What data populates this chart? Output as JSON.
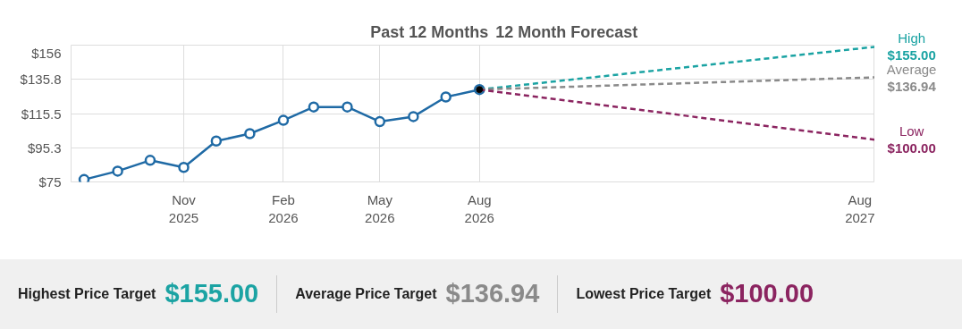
{
  "chart_data": {
    "type": "line",
    "title": "Past 12 Months",
    "subtitle": "12 Month Forecast",
    "series": [
      {
        "color": "#1f6aa5",
        "marker": "circle",
        "x": [
          "2025-08",
          "2025-09",
          "2025-10",
          "2025-11",
          "2025-12",
          "2026-01",
          "2026-02",
          "2026-03",
          "2026-04",
          "2026-05",
          "2026-06",
          "2026-07",
          "2026-08"
        ],
        "values": [
          76.4,
          81.4,
          87.8,
          83.6,
          99.2,
          103.6,
          111.5,
          119.4,
          119.4,
          110.7,
          113.7,
          125.3,
          129.7
        ]
      },
      {
        "name": "High",
        "color": "#1ba3a3",
        "line_style": "dashed",
        "x": [
          "2026-08",
          "2027-08"
        ],
        "values": [
          129.7,
          155.0
        ],
        "value_labels": [
          null,
          "$155.00"
        ]
      },
      {
        "name": "Average",
        "color": "#8a8a8a",
        "line_style": "dashed",
        "x": [
          "2026-08",
          "2027-08"
        ],
        "values": [
          129.7,
          136.94
        ],
        "value_labels": [
          null,
          "$136.94"
        ]
      },
      {
        "name": "Low",
        "color": "#8b2460",
        "line_style": "dashed",
        "x": [
          "2026-08",
          "2027-08"
        ],
        "values": [
          129.7,
          100.0
        ],
        "value_labels": [
          null,
          "$100.00"
        ]
      },
      {
        "type": "scatter",
        "color": "#000000",
        "x": [
          "2026-08"
        ],
        "values": [
          129.7
        ]
      }
    ],
    "xlim": [
      "2025-07-20",
      "2027-08"
    ],
    "xticks": [
      {
        "value": "2025-11",
        "label": "Nov\n2025"
      },
      {
        "value": "2026-02",
        "label": "Feb\n2026"
      },
      {
        "value": "2026-05",
        "label": "May\n2026"
      },
      {
        "value": "2026-08",
        "label": "Aug\n2026"
      },
      {
        "value": "2027-08",
        "label": "Aug\n2027"
      }
    ],
    "ylim": [
      75,
      156
    ],
    "yticks": [
      {
        "value": 75,
        "label": "$75"
      },
      {
        "value": 95.3,
        "label": "$95.3"
      },
      {
        "value": 115.5,
        "label": "$115.5"
      },
      {
        "value": 135.8,
        "label": "$135.8"
      },
      {
        "value": 156,
        "label": "$156"
      }
    ],
    "grid": true,
    "annotations": [
      "Highest Price Target",
      "$155.00",
      "Average Price Target",
      "$136.94",
      "Lowest Price Target",
      "$100.00"
    ]
  }
}
